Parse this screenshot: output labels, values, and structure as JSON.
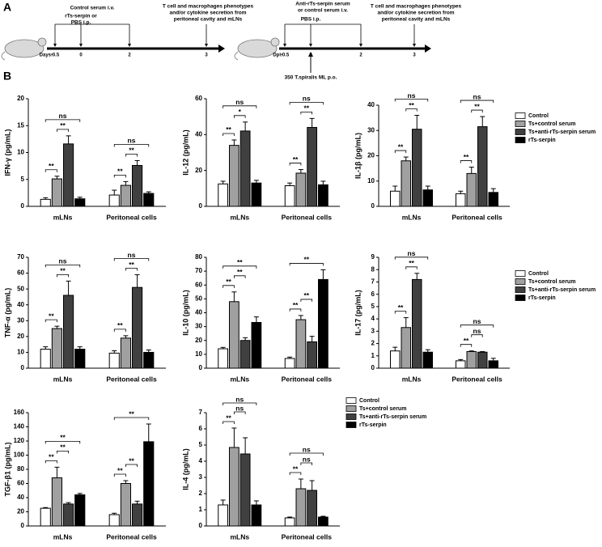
{
  "panels": {
    "a": "A",
    "b": "B"
  },
  "timeline": [
    {
      "top": [
        "Control serum i.v."
      ],
      "mid": [
        "rTs-serpin or",
        "PBS i.p."
      ],
      "right": [
        "T cell and macrophages phenotypes",
        "and/or cytokine secretion from",
        "peritoneal cavity and mLNs"
      ],
      "axis": "Days:",
      "days": [
        -0.5,
        0,
        2,
        3
      ]
    },
    {
      "top": [
        "Anti-rTs-serpin serum",
        "or control serum i.v."
      ],
      "mid": [
        "PBS i.p."
      ],
      "right": [
        "T cell and macrophages phenotypes",
        "and/or cytokine secretion from",
        "peritoneal cavity and mLNs"
      ],
      "axis": "Dpi:",
      "days": [
        -0.5,
        0,
        2,
        3
      ],
      "infection": "350 T.spiralis ML p.o."
    }
  ],
  "chart_data": [
    {
      "type": "bar",
      "ylabel": "IFN-γ (pg/mL)",
      "categories": [
        "mLNs",
        "Peritoneal cells"
      ],
      "ylim": [
        0,
        20
      ],
      "yticks": [
        0,
        5,
        10,
        15,
        20
      ],
      "legend": false,
      "series": [
        {
          "name": "Control",
          "color": "#ffffff",
          "values": [
            1.3,
            2.1
          ],
          "errors": [
            0.3,
            0.9
          ]
        },
        {
          "name": "Ts+control serum",
          "color": "#a0a0a0",
          "values": [
            5.1,
            3.9
          ],
          "errors": [
            0.5,
            0.7
          ]
        },
        {
          "name": "Ts+anti-rTs-serpin serum",
          "color": "#404040",
          "values": [
            11.6,
            7.6
          ],
          "errors": [
            1.5,
            0.9
          ]
        },
        {
          "name": "rTs-serpin",
          "color": "#000000",
          "values": [
            1.4,
            2.4
          ],
          "errors": [
            0.3,
            0.3
          ]
        }
      ],
      "brackets": [
        {
          "group": 0,
          "series": [
            0,
            1
          ],
          "label": "**"
        },
        {
          "group": 0,
          "series": [
            1,
            2
          ],
          "label": "**"
        },
        {
          "group": 0,
          "series": [
            0,
            3
          ],
          "label": "ns"
        },
        {
          "group": 1,
          "series": [
            0,
            1
          ],
          "label": "**"
        },
        {
          "group": 1,
          "series": [
            1,
            2
          ],
          "label": "**"
        },
        {
          "group": 1,
          "series": [
            0,
            3
          ],
          "label": "ns"
        }
      ]
    },
    {
      "type": "bar",
      "ylabel": "IL-12 (pg/mL)",
      "categories": [
        "mLNs",
        "Peritoneal cells"
      ],
      "ylim": [
        0,
        60
      ],
      "yticks": [
        0,
        20,
        40,
        60
      ],
      "legend": false,
      "series": [
        {
          "name": "Control",
          "color": "#ffffff",
          "values": [
            12.5,
            11.5
          ],
          "errors": [
            1.5,
            1.5
          ]
        },
        {
          "name": "Ts+control serum",
          "color": "#a0a0a0",
          "values": [
            34,
            18.5
          ],
          "errors": [
            3,
            2
          ]
        },
        {
          "name": "Ts+anti-rTs-serpin serum",
          "color": "#404040",
          "values": [
            42,
            44
          ],
          "errors": [
            5,
            5
          ]
        },
        {
          "name": "rTs-serpin",
          "color": "#000000",
          "values": [
            13,
            12
          ],
          "errors": [
            1.5,
            2
          ]
        }
      ],
      "brackets": [
        {
          "group": 0,
          "series": [
            0,
            1
          ],
          "label": "**"
        },
        {
          "group": 0,
          "series": [
            1,
            2
          ],
          "label": "*"
        },
        {
          "group": 0,
          "series": [
            0,
            3
          ],
          "label": "ns"
        },
        {
          "group": 1,
          "series": [
            0,
            1
          ],
          "label": "**"
        },
        {
          "group": 1,
          "series": [
            1,
            2
          ],
          "label": "**"
        },
        {
          "group": 1,
          "series": [
            0,
            3
          ],
          "label": "ns"
        }
      ]
    },
    {
      "type": "bar",
      "ylabel": "IL-1β (pg/mL)",
      "categories": [
        "mLNs",
        "Peritoneal cells"
      ],
      "ylim": [
        0,
        40
      ],
      "yticks": [
        0,
        10,
        20,
        30,
        40
      ],
      "legend": true,
      "series": [
        {
          "name": "Control",
          "color": "#ffffff",
          "values": [
            6,
            5
          ],
          "errors": [
            2,
            1
          ]
        },
        {
          "name": "Ts+control serum",
          "color": "#a0a0a0",
          "values": [
            18,
            13
          ],
          "errors": [
            1.5,
            2.5
          ]
        },
        {
          "name": "Ts+anti-rTs-serpin serum",
          "color": "#404040",
          "values": [
            30.5,
            31.5
          ],
          "errors": [
            5.5,
            4
          ]
        },
        {
          "name": "rTs-serpin",
          "color": "#000000",
          "values": [
            6.5,
            5.5
          ],
          "errors": [
            1.5,
            1.5
          ]
        }
      ],
      "brackets": [
        {
          "group": 0,
          "series": [
            0,
            1
          ],
          "label": "**"
        },
        {
          "group": 0,
          "series": [
            1,
            2
          ],
          "label": "**"
        },
        {
          "group": 0,
          "series": [
            0,
            3
          ],
          "label": "ns"
        },
        {
          "group": 1,
          "series": [
            0,
            1
          ],
          "label": "**"
        },
        {
          "group": 1,
          "series": [
            1,
            2
          ],
          "label": "**"
        },
        {
          "group": 1,
          "series": [
            0,
            3
          ],
          "label": "ns"
        }
      ]
    },
    {
      "type": "bar",
      "ylabel": "TNF-α (pg/mL)",
      "categories": [
        "mLNs",
        "Peritoneal cells"
      ],
      "ylim": [
        0,
        70
      ],
      "yticks": [
        0,
        10,
        20,
        30,
        40,
        50,
        60,
        70
      ],
      "legend": false,
      "series": [
        {
          "name": "Control",
          "color": "#ffffff",
          "values": [
            12,
            9.5
          ],
          "errors": [
            1.5,
            1.5
          ]
        },
        {
          "name": "Ts+control serum",
          "color": "#a0a0a0",
          "values": [
            25,
            19
          ],
          "errors": [
            1.5,
            1.5
          ]
        },
        {
          "name": "Ts+anti-rTs-serpin serum",
          "color": "#404040",
          "values": [
            46,
            51
          ],
          "errors": [
            9,
            8
          ]
        },
        {
          "name": "rTs-serpin",
          "color": "#000000",
          "values": [
            12,
            10
          ],
          "errors": [
            1.5,
            1.5
          ]
        }
      ],
      "brackets": [
        {
          "group": 0,
          "series": [
            0,
            1
          ],
          "label": "**"
        },
        {
          "group": 0,
          "series": [
            1,
            2
          ],
          "label": "**"
        },
        {
          "group": 0,
          "series": [
            0,
            3
          ],
          "label": "ns"
        },
        {
          "group": 1,
          "series": [
            0,
            1
          ],
          "label": "**"
        },
        {
          "group": 1,
          "series": [
            1,
            2
          ],
          "label": "**"
        },
        {
          "group": 1,
          "series": [
            0,
            3
          ],
          "label": "ns"
        }
      ]
    },
    {
      "type": "bar",
      "ylabel": "IL-10 (pg/mL)",
      "categories": [
        "mLNs",
        "Peritoneal cells"
      ],
      "ylim": [
        0,
        80
      ],
      "yticks": [
        0,
        10,
        20,
        30,
        40,
        50,
        60,
        70,
        80
      ],
      "legend": false,
      "series": [
        {
          "name": "Control",
          "color": "#ffffff",
          "values": [
            14,
            7
          ],
          "errors": [
            1,
            1
          ]
        },
        {
          "name": "Ts+control serum",
          "color": "#a0a0a0",
          "values": [
            48,
            35
          ],
          "errors": [
            7,
            3
          ]
        },
        {
          "name": "Ts+anti-rTs-serpin serum",
          "color": "#404040",
          "values": [
            20,
            19
          ],
          "errors": [
            2,
            4
          ]
        },
        {
          "name": "rTs-serpin",
          "color": "#000000",
          "values": [
            33,
            64
          ],
          "errors": [
            4,
            7
          ]
        }
      ],
      "brackets": [
        {
          "group": 0,
          "series": [
            0,
            1
          ],
          "label": "**"
        },
        {
          "group": 0,
          "series": [
            1,
            2
          ],
          "label": "**"
        },
        {
          "group": 0,
          "series": [
            0,
            3
          ],
          "label": "**"
        },
        {
          "group": 1,
          "series": [
            0,
            1
          ],
          "label": "**"
        },
        {
          "group": 1,
          "series": [
            1,
            2
          ],
          "label": "**"
        },
        {
          "group": 1,
          "series": [
            0,
            3
          ],
          "label": "**"
        }
      ]
    },
    {
      "type": "bar",
      "ylabel": "IL-17 (pg/mL)",
      "categories": [
        "mLNs",
        "Peritoneal cells"
      ],
      "ylim": [
        0,
        9
      ],
      "yticks": [
        0,
        1,
        2,
        3,
        4,
        5,
        6,
        7,
        8,
        9
      ],
      "legend": true,
      "series": [
        {
          "name": "Control",
          "color": "#ffffff",
          "values": [
            1.4,
            0.6
          ],
          "errors": [
            0.3,
            0.1
          ]
        },
        {
          "name": "Ts+control serum",
          "color": "#a0a0a0",
          "values": [
            3.3,
            1.35
          ],
          "errors": [
            0.8,
            0.05
          ]
        },
        {
          "name": "Ts+anti-rTs-serpin serum",
          "color": "#404040",
          "values": [
            7.2,
            1.3
          ],
          "errors": [
            0.5,
            0.05
          ]
        },
        {
          "name": "rTs-serpin",
          "color": "#000000",
          "values": [
            1.3,
            0.6
          ],
          "errors": [
            0.2,
            0.2
          ]
        }
      ],
      "brackets": [
        {
          "group": 0,
          "series": [
            0,
            1
          ],
          "label": "**"
        },
        {
          "group": 0,
          "series": [
            1,
            2
          ],
          "label": "**"
        },
        {
          "group": 0,
          "series": [
            0,
            3
          ],
          "label": "ns"
        },
        {
          "group": 1,
          "series": [
            0,
            1
          ],
          "label": "**"
        },
        {
          "group": 1,
          "series": [
            1,
            2
          ],
          "label": "ns"
        },
        {
          "group": 1,
          "series": [
            0,
            3
          ],
          "label": "ns"
        }
      ]
    },
    {
      "type": "bar",
      "ylabel": "TGF-β1 (pg/mL)",
      "categories": [
        "mLNs",
        "Peritoneal cells"
      ],
      "ylim": [
        0,
        160
      ],
      "yticks": [
        0,
        20,
        40,
        60,
        80,
        100,
        120,
        140,
        160
      ],
      "legend": false,
      "series": [
        {
          "name": "Control",
          "color": "#ffffff",
          "values": [
            25,
            16
          ],
          "errors": [
            1,
            2
          ]
        },
        {
          "name": "Ts+control serum",
          "color": "#a0a0a0",
          "values": [
            68,
            60
          ],
          "errors": [
            15,
            4
          ]
        },
        {
          "name": "Ts+anti-rTs-serpin serum",
          "color": "#404040",
          "values": [
            31,
            31
          ],
          "errors": [
            2,
            4
          ]
        },
        {
          "name": "rTs-serpin",
          "color": "#000000",
          "values": [
            44,
            119
          ],
          "errors": [
            2,
            25
          ]
        }
      ],
      "brackets": [
        {
          "group": 0,
          "series": [
            0,
            1
          ],
          "label": "**"
        },
        {
          "group": 0,
          "series": [
            1,
            2
          ],
          "label": "**"
        },
        {
          "group": 0,
          "series": [
            0,
            3
          ],
          "label": "**"
        },
        {
          "group": 1,
          "series": [
            0,
            1
          ],
          "label": "**"
        },
        {
          "group": 1,
          "series": [
            1,
            2
          ],
          "label": "**"
        },
        {
          "group": 1,
          "series": [
            0,
            3
          ],
          "label": "**"
        }
      ]
    },
    {
      "type": "bar",
      "ylabel": "IL-4 (pg/mL)",
      "categories": [
        "mLNs",
        "Peritoneal cells"
      ],
      "ylim": [
        0,
        7
      ],
      "yticks": [
        0,
        1,
        2,
        3,
        4,
        5,
        6,
        7
      ],
      "legend": true,
      "series": [
        {
          "name": "Control",
          "color": "#ffffff",
          "values": [
            1.3,
            0.5
          ],
          "errors": [
            0.3,
            0.05
          ]
        },
        {
          "name": "Ts+control serum",
          "color": "#a0a0a0",
          "values": [
            4.85,
            2.3
          ],
          "errors": [
            1.2,
            0.6
          ]
        },
        {
          "name": "Ts+anti-rTs-serpin serum",
          "color": "#404040",
          "values": [
            4.45,
            2.2
          ],
          "errors": [
            1,
            0.6
          ]
        },
        {
          "name": "rTs-serpin",
          "color": "#000000",
          "values": [
            1.3,
            0.55
          ],
          "errors": [
            0.25,
            0.05
          ]
        }
      ],
      "brackets": [
        {
          "group": 0,
          "series": [
            0,
            1
          ],
          "label": "**"
        },
        {
          "group": 0,
          "series": [
            1,
            2
          ],
          "label": "ns"
        },
        {
          "group": 0,
          "series": [
            0,
            3
          ],
          "label": "ns"
        },
        {
          "group": 1,
          "series": [
            0,
            1
          ],
          "label": "**"
        },
        {
          "group": 1,
          "series": [
            1,
            2
          ],
          "label": "ns"
        },
        {
          "group": 1,
          "series": [
            0,
            3
          ],
          "label": "ns"
        }
      ]
    }
  ]
}
